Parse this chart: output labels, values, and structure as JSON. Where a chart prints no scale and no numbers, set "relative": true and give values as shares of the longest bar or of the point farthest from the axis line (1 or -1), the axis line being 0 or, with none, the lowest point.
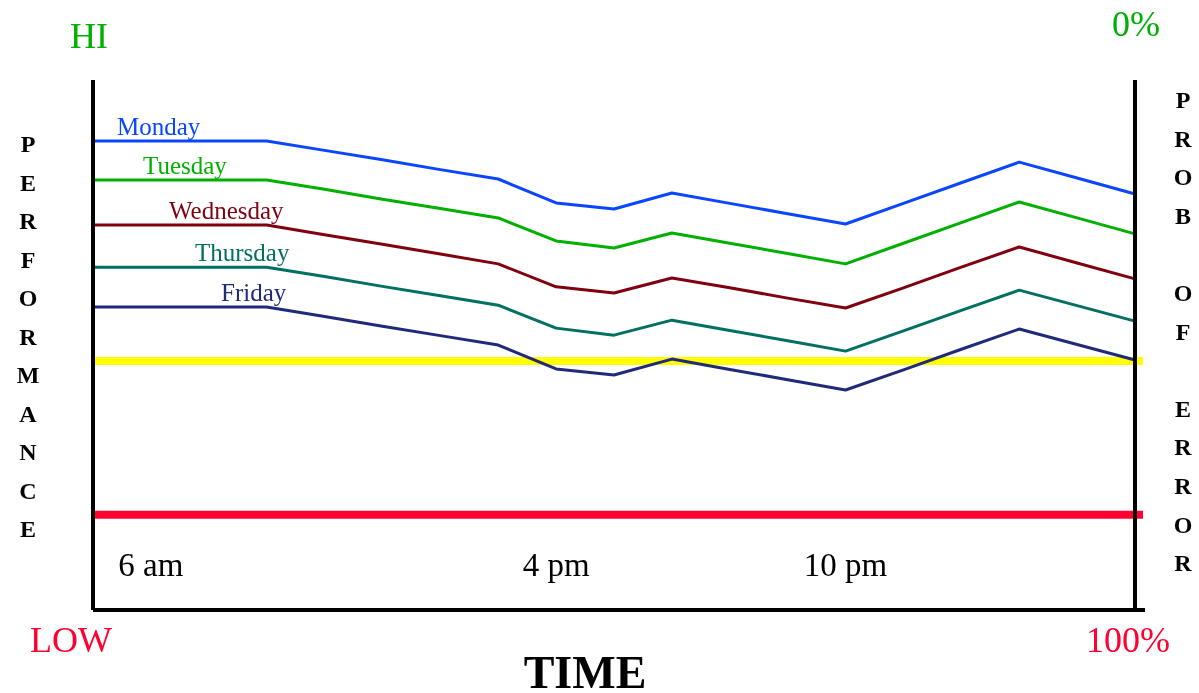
{
  "chart_data": {
    "type": "line",
    "relative": true,
    "xlabel": "TIME",
    "ylabel": "PERFORMANCE",
    "y2label": "PROB OF ERROR",
    "categories": [
      null,
      "6 am",
      null,
      null,
      null,
      null,
      null,
      null,
      "4 pm",
      null,
      null,
      null,
      null,
      "10 pm",
      null,
      null,
      null,
      null,
      null
    ],
    "series": [
      {
        "name": "Monday",
        "color": "#0a46ff",
        "values": [
          1,
          1,
          1,
          1,
          0.98,
          0.96,
          0.939,
          0.919,
          0.868,
          0.855,
          0.889,
          0.867,
          0.845,
          0.823,
          0.867,
          0.911,
          0.955,
          0.921,
          0.887
        ]
      },
      {
        "name": "Tuesday",
        "color": "#00b000",
        "values": [
          0.917,
          0.917,
          0.917,
          0.917,
          0.897,
          0.876,
          0.856,
          0.836,
          0.787,
          0.772,
          0.804,
          0.782,
          0.76,
          0.738,
          0.782,
          0.826,
          0.87,
          0.836,
          0.802
        ]
      },
      {
        "name": "Wednesday",
        "color": "#800010",
        "values": [
          0.821,
          0.821,
          0.821,
          0.821,
          0.8,
          0.78,
          0.759,
          0.738,
          0.689,
          0.676,
          0.708,
          0.687,
          0.665,
          0.644,
          0.687,
          0.731,
          0.774,
          0.74,
          0.706
        ]
      },
      {
        "name": "Thursday",
        "color": "#007060",
        "values": [
          0.731,
          0.731,
          0.731,
          0.731,
          0.711,
          0.69,
          0.67,
          0.65,
          0.601,
          0.586,
          0.618,
          0.596,
          0.574,
          0.552,
          0.595,
          0.639,
          0.682,
          0.649,
          0.616
        ]
      },
      {
        "name": "Friday",
        "color": "#202a7a",
        "values": [
          0.646,
          0.646,
          0.646,
          0.646,
          0.626,
          0.605,
          0.585,
          0.565,
          0.514,
          0.501,
          0.535,
          0.513,
          0.491,
          0.469,
          0.512,
          0.556,
          0.599,
          0.566,
          0.533
        ]
      }
    ],
    "ref_lines": [
      {
        "axis": "y",
        "value": 0.531,
        "color": "#ffff00"
      },
      {
        "axis": "y",
        "value": 0.203,
        "color": "#ff0030"
      }
    ],
    "annotations": [
      "HI",
      "LOW",
      "0%",
      "100%"
    ]
  }
}
